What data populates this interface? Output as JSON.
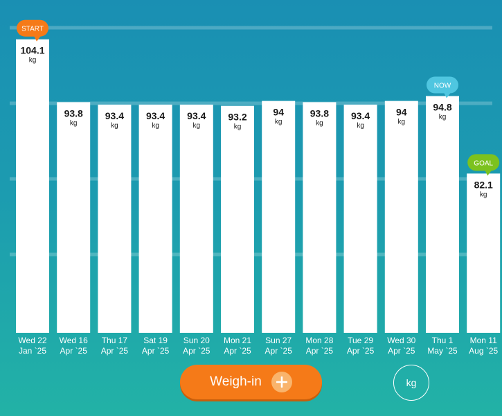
{
  "chart_data": {
    "type": "bar",
    "unit": "kg",
    "categories": [
      [
        "Wed 22",
        "Jan `25"
      ],
      [
        "Wed 16",
        "Apr `25"
      ],
      [
        "Thu 17",
        "Apr `25"
      ],
      [
        "Sat 19",
        "Apr `25"
      ],
      [
        "Sun 20",
        "Apr `25"
      ],
      [
        "Mon 21",
        "Apr `25"
      ],
      [
        "Sun 27",
        "Apr `25"
      ],
      [
        "Mon 28",
        "Apr `25"
      ],
      [
        "Tue 29",
        "Apr `25"
      ],
      [
        "Wed 30",
        "Apr `25"
      ],
      [
        "Thu 1",
        "May `25"
      ],
      [
        "Mon 11",
        "Aug `25"
      ]
    ],
    "values": [
      104.1,
      93.8,
      93.4,
      93.4,
      93.4,
      93.2,
      94,
      93.8,
      93.4,
      94,
      94.8,
      82.1
    ],
    "labels": [
      "104.1",
      "93.8",
      "93.4",
      "93.4",
      "93.4",
      "93.2",
      "94",
      "93.8",
      "93.4",
      "94",
      "94.8",
      "82.1"
    ],
    "tags": [
      {
        "index": 0,
        "text": "START",
        "color": "#f57a18"
      },
      {
        "index": 10,
        "text": "NOW",
        "color": "#4fc6e0"
      },
      {
        "index": 11,
        "text": "GOAL",
        "color": "#7cc21e"
      }
    ],
    "ylim": [
      56,
      106
    ],
    "grid": true
  },
  "actions": {
    "weigh_in_label": "Weigh-in",
    "unit_toggle_label": "kg"
  },
  "colors": {
    "accent": "#f57a18",
    "now": "#4fc6e0",
    "goal": "#7cc21e"
  }
}
